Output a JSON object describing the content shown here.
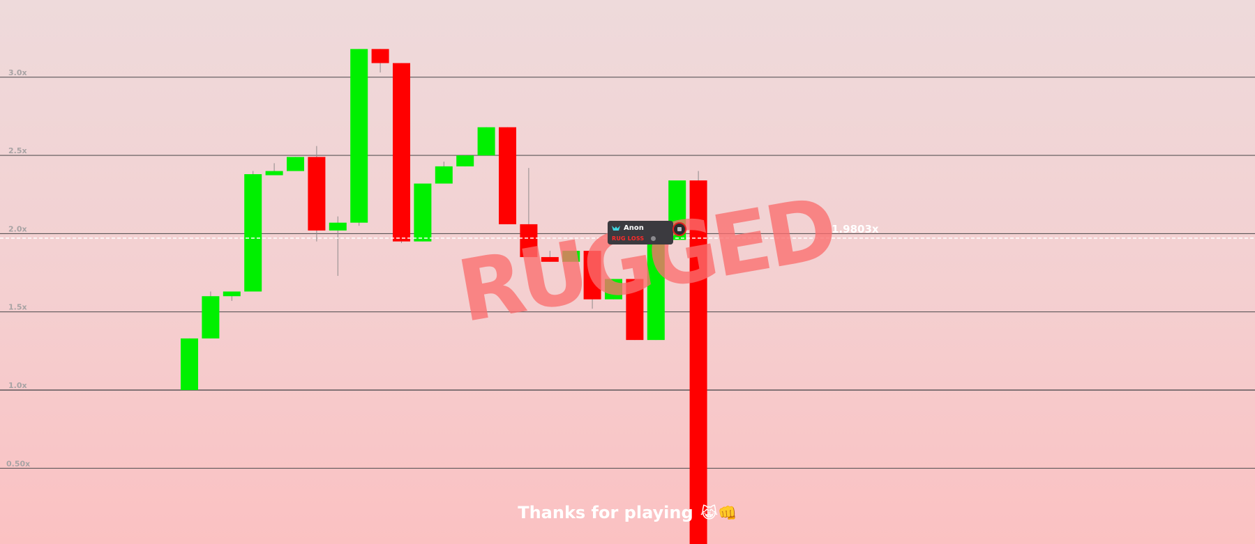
{
  "chart_data": {
    "type": "candlestick",
    "y_scale": "multiplier",
    "ylim": [
      0.0,
      3.5
    ],
    "grid": true,
    "y_ticks": [
      {
        "value": 3.0,
        "label": "3.0x"
      },
      {
        "value": 2.5,
        "label": "2.5x"
      },
      {
        "value": 2.0,
        "label": "2.0x"
      },
      {
        "value": 1.5,
        "label": "1.5x"
      },
      {
        "value": 1.0,
        "label": "1.0x"
      },
      {
        "value": 0.5,
        "label": "0.50x"
      }
    ],
    "candles": [
      {
        "open": 1.0,
        "close": 1.33,
        "high": 1.33,
        "low": 1.0
      },
      {
        "open": 1.33,
        "close": 1.6,
        "high": 1.63,
        "low": 1.33
      },
      {
        "open": 1.6,
        "close": 1.63,
        "high": 1.63,
        "low": 1.57
      },
      {
        "open": 1.63,
        "close": 2.38,
        "high": 2.4,
        "low": 1.63
      },
      {
        "open": 2.38,
        "close": 2.4,
        "high": 2.45,
        "low": 2.38
      },
      {
        "open": 2.4,
        "close": 2.49,
        "high": 2.49,
        "low": 2.4
      },
      {
        "open": 2.49,
        "close": 2.02,
        "high": 2.56,
        "low": 1.95
      },
      {
        "open": 2.02,
        "close": 2.07,
        "high": 2.11,
        "low": 1.73
      },
      {
        "open": 2.07,
        "close": 3.18,
        "high": 3.18,
        "low": 2.05
      },
      {
        "open": 3.18,
        "close": 3.09,
        "high": 3.18,
        "low": 3.03
      },
      {
        "open": 3.09,
        "close": 1.95,
        "high": 3.09,
        "low": 1.94
      },
      {
        "open": 1.95,
        "close": 2.32,
        "high": 2.32,
        "low": 1.95
      },
      {
        "open": 2.32,
        "close": 2.43,
        "high": 2.46,
        "low": 2.32
      },
      {
        "open": 2.43,
        "close": 2.5,
        "high": 2.5,
        "low": 2.43
      },
      {
        "open": 2.5,
        "close": 2.68,
        "high": 2.68,
        "low": 2.5
      },
      {
        "open": 2.68,
        "close": 2.06,
        "high": 2.68,
        "low": 2.06
      },
      {
        "open": 2.06,
        "close": 1.85,
        "high": 2.42,
        "low": 1.85
      },
      {
        "open": 1.85,
        "close": 1.82,
        "high": 1.89,
        "low": 1.82
      },
      {
        "open": 1.82,
        "close": 1.89,
        "high": 1.89,
        "low": 1.82
      },
      {
        "open": 1.89,
        "close": 1.58,
        "high": 1.89,
        "low": 1.52
      },
      {
        "open": 1.58,
        "close": 1.71,
        "high": 1.71,
        "low": 1.58
      },
      {
        "open": 1.71,
        "close": 1.32,
        "high": 1.71,
        "low": 1.32
      },
      {
        "open": 1.32,
        "close": 2.0,
        "high": 2.0,
        "low": 1.32
      },
      {
        "open": 1.96,
        "close": 2.34,
        "high": 2.34,
        "low": 1.96
      },
      {
        "open": 2.34,
        "close": 0.0,
        "high": 2.4,
        "low": 0.0
      }
    ],
    "current_value": 1.9803,
    "current_label": "1.9803x",
    "colors": {
      "up": "#00f000",
      "down": "#ff0000",
      "grid": "#5a5557",
      "dashed": "#ffffff"
    }
  },
  "overlay": {
    "rugged_text": "RUGGED",
    "thanks_text": "Thanks for playing",
    "thanks_emoji": "😹👊"
  },
  "player": {
    "name": "Anon",
    "status": "RUG LOSS",
    "icon": "team-logo-icon"
  }
}
